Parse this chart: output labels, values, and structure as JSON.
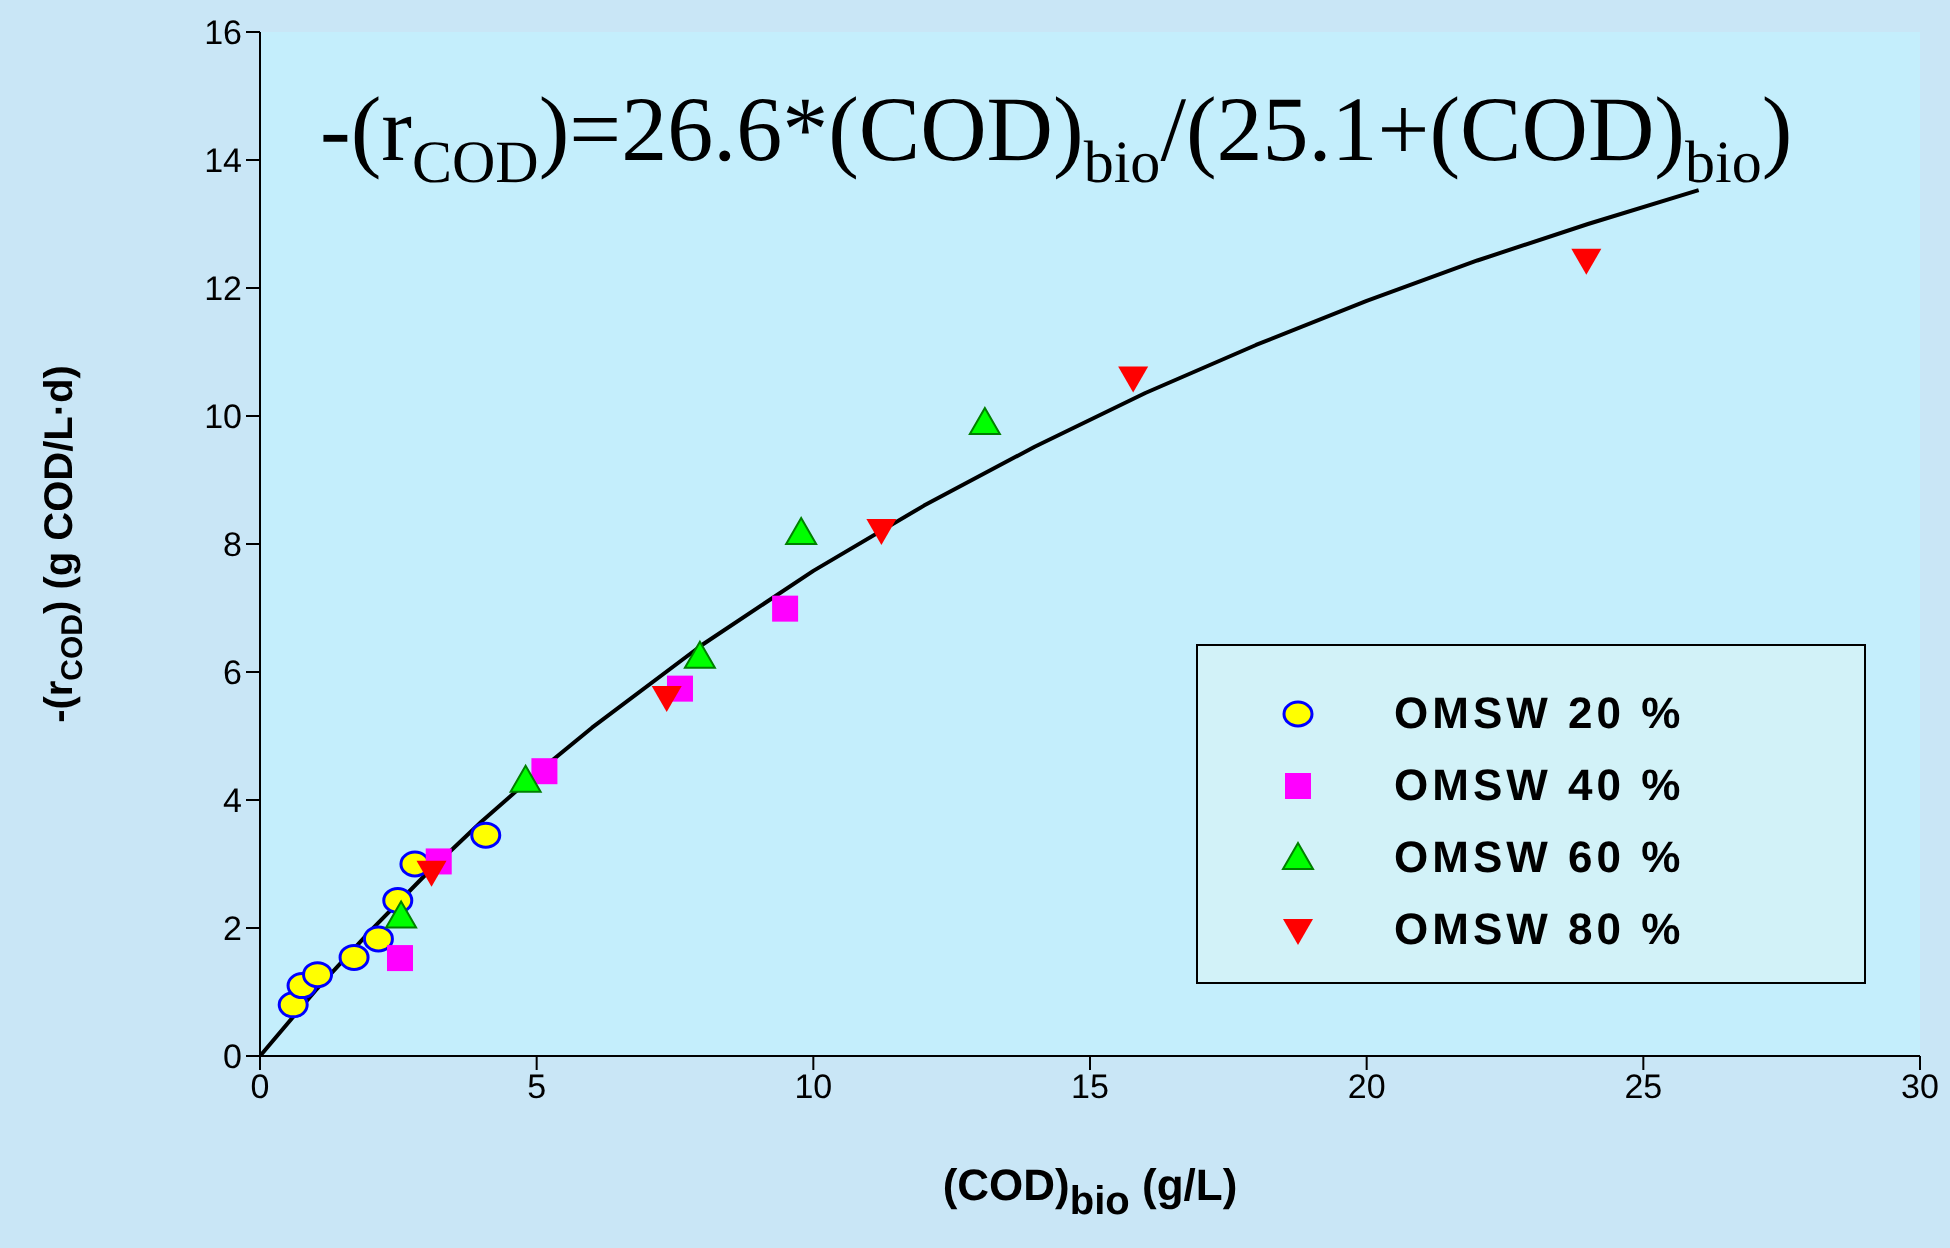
{
  "chart_data": {
    "type": "scatter",
    "xlabel": "(COD)$_{bio}$ (g/L)",
    "ylabel": "-(r$_{COD}$)  (g COD/L·d)",
    "annotations": [
      "-(r$_{COD}$)=26.6*(COD)$_{bio}$/(25.1+(COD)$_{bio}$)"
    ],
    "xlim": [
      0,
      30
    ],
    "xticks": [
      0,
      5,
      10,
      15,
      20,
      25,
      30
    ],
    "ylim": [
      0,
      16
    ],
    "yticks": [
      0,
      2,
      4,
      6,
      8,
      10,
      12,
      14,
      16
    ],
    "grid": false,
    "legend": "bottom right",
    "series": [
      {
        "name": "OMSW 20 %",
        "color": "#ffff00",
        "marker": "circle",
        "x": [
          0.6,
          0.76,
          1.04,
          1.7,
          2.14,
          2.49,
          2.8,
          4.08
        ],
        "values": [
          0.8,
          1.1,
          1.27,
          1.54,
          1.83,
          2.43,
          3.0,
          3.45
        ]
      },
      {
        "name": "OMSW 40 %",
        "color": "#ff00ff",
        "marker": "square",
        "x": [
          2.53,
          3.23,
          5.14,
          7.59,
          9.49
        ],
        "values": [
          1.53,
          3.04,
          4.45,
          5.74,
          6.99
        ]
      },
      {
        "name": "OMSW 60 %",
        "color": "#00ff00",
        "marker": "triangle",
        "x": [
          2.55,
          4.8,
          7.95,
          9.78,
          13.1
        ],
        "values": [
          2.18,
          4.3,
          6.24,
          8.17,
          9.89
        ]
      },
      {
        "name": "OMSW 80 %",
        "color": "#ff0000",
        "marker": "triangle-down",
        "x": [
          3.1,
          7.35,
          11.23,
          15.78,
          23.97
        ],
        "values": [
          2.88,
          5.61,
          8.22,
          10.6,
          12.44
        ]
      },
      {
        "type": "line",
        "color": "#000000",
        "marker": "none",
        "line_style": "solid",
        "x": [
          0,
          1,
          2,
          3,
          4,
          5,
          6,
          8,
          10,
          12,
          14,
          16,
          18,
          20,
          22,
          24,
          26
        ],
        "values": [
          0,
          1.02,
          1.96,
          2.84,
          3.66,
          4.42,
          5.13,
          6.43,
          7.58,
          8.6,
          9.52,
          10.36,
          11.11,
          11.8,
          12.43,
          13,
          13.53
        ]
      }
    ]
  }
}
